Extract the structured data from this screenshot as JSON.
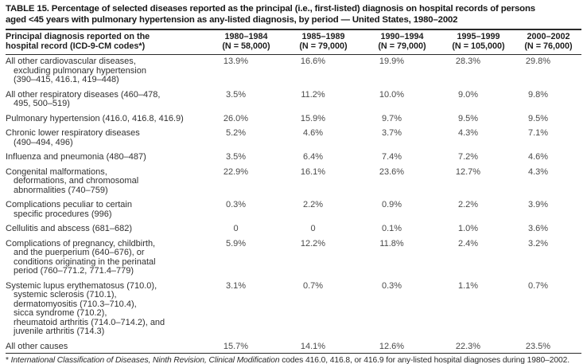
{
  "title": "TABLE 15. Percentage of selected diseases reported as the principal (i.e., first-listed) diagnosis on hospital records of persons\naged <45 years with pulmonary hypertension as any-listed diagnosis, by period — United States, 1980–2002",
  "table": {
    "diagnosis_header": "Principal diagnosis reported on the\nhospital record (ICD-9-CM codes*)",
    "period_columns": [
      {
        "period": "1980–1984",
        "n": "(N = 58,000)"
      },
      {
        "period": "1985–1989",
        "n": "(N = 79,000)"
      },
      {
        "period": "1990–1994",
        "n": "(N = 79,000)"
      },
      {
        "period": "1995–1999",
        "n": "(N = 105,000)"
      },
      {
        "period": "2000–2002",
        "n": "(N = 76,000)"
      }
    ],
    "rows": [
      {
        "label_lines": [
          "All other cardiovascular diseases,",
          "excluding pulmonary hypertension",
          "(390–415, 416.1, 419–448)"
        ],
        "values": [
          "13.9%",
          "16.6%",
          "19.9%",
          "28.3%",
          "29.8%"
        ]
      },
      {
        "label_lines": [
          "All other respiratory diseases (460–478,",
          "495, 500–519)"
        ],
        "values": [
          "3.5%",
          "11.2%",
          "10.0%",
          "9.0%",
          "9.8%"
        ]
      },
      {
        "label_lines": [
          "Pulmonary hypertension (416.0, 416.8, 416.9)"
        ],
        "values": [
          "26.0%",
          "15.9%",
          "9.7%",
          "9.5%",
          "9.5%"
        ]
      },
      {
        "label_lines": [
          "Chronic lower respiratory diseases",
          "(490–494, 496)"
        ],
        "values": [
          "5.2%",
          "4.6%",
          "3.7%",
          "4.3%",
          "7.1%"
        ]
      },
      {
        "label_lines": [
          "Influenza and pneumonia (480–487)"
        ],
        "values": [
          "3.5%",
          "6.4%",
          "7.4%",
          "7.2%",
          "4.6%"
        ]
      },
      {
        "label_lines": [
          "Congenital malformations,",
          "deformations, and chromosomal",
          "abnormalities (740–759)"
        ],
        "values": [
          "22.9%",
          "16.1%",
          "23.6%",
          "12.7%",
          "4.3%"
        ]
      },
      {
        "label_lines": [
          "Complications peculiar to certain",
          "specific procedures (996)"
        ],
        "values": [
          "0.3%",
          "2.2%",
          "0.9%",
          "2.2%",
          "3.9%"
        ]
      },
      {
        "label_lines": [
          "Cellulitis and abscess (681–682)"
        ],
        "values": [
          "0",
          "0",
          "0.1%",
          "1.0%",
          "3.6%"
        ]
      },
      {
        "label_lines": [
          "Complications of pregnancy, childbirth,",
          "and the puerperium (640–676), or",
          "conditions originating in the perinatal",
          "period (760–771.2, 771.4–779)"
        ],
        "values": [
          "5.9%",
          "12.2%",
          "11.8%",
          "2.4%",
          "3.2%"
        ]
      },
      {
        "label_lines": [
          "Systemic lupus erythematosus (710.0),",
          "systemic sclerosis (710.1),",
          "dermatomyositis (710.3–710.4),",
          "sicca syndrome (710.2),",
          "rheumatoid arthritis (714.0–714.2), and",
          "juvenile arthritis (714.3)"
        ],
        "values": [
          "3.1%",
          "0.7%",
          "0.3%",
          "1.1%",
          "0.7%"
        ]
      },
      {
        "label_lines": [
          "All other causes"
        ],
        "values": [
          "15.7%",
          "14.1%",
          "12.6%",
          "22.3%",
          "23.5%"
        ]
      }
    ]
  },
  "footnote": {
    "marker": "* ",
    "italic": "International Classification of Diseases, Ninth Revision, Clinical Modification",
    "rest": " codes 416.0, 416.8, or 416.9 for any-listed hospital diagnoses during 1980–2002."
  },
  "colors": {
    "text": "#222222",
    "rule": "#2a2a2a",
    "background": "#ffffff"
  }
}
